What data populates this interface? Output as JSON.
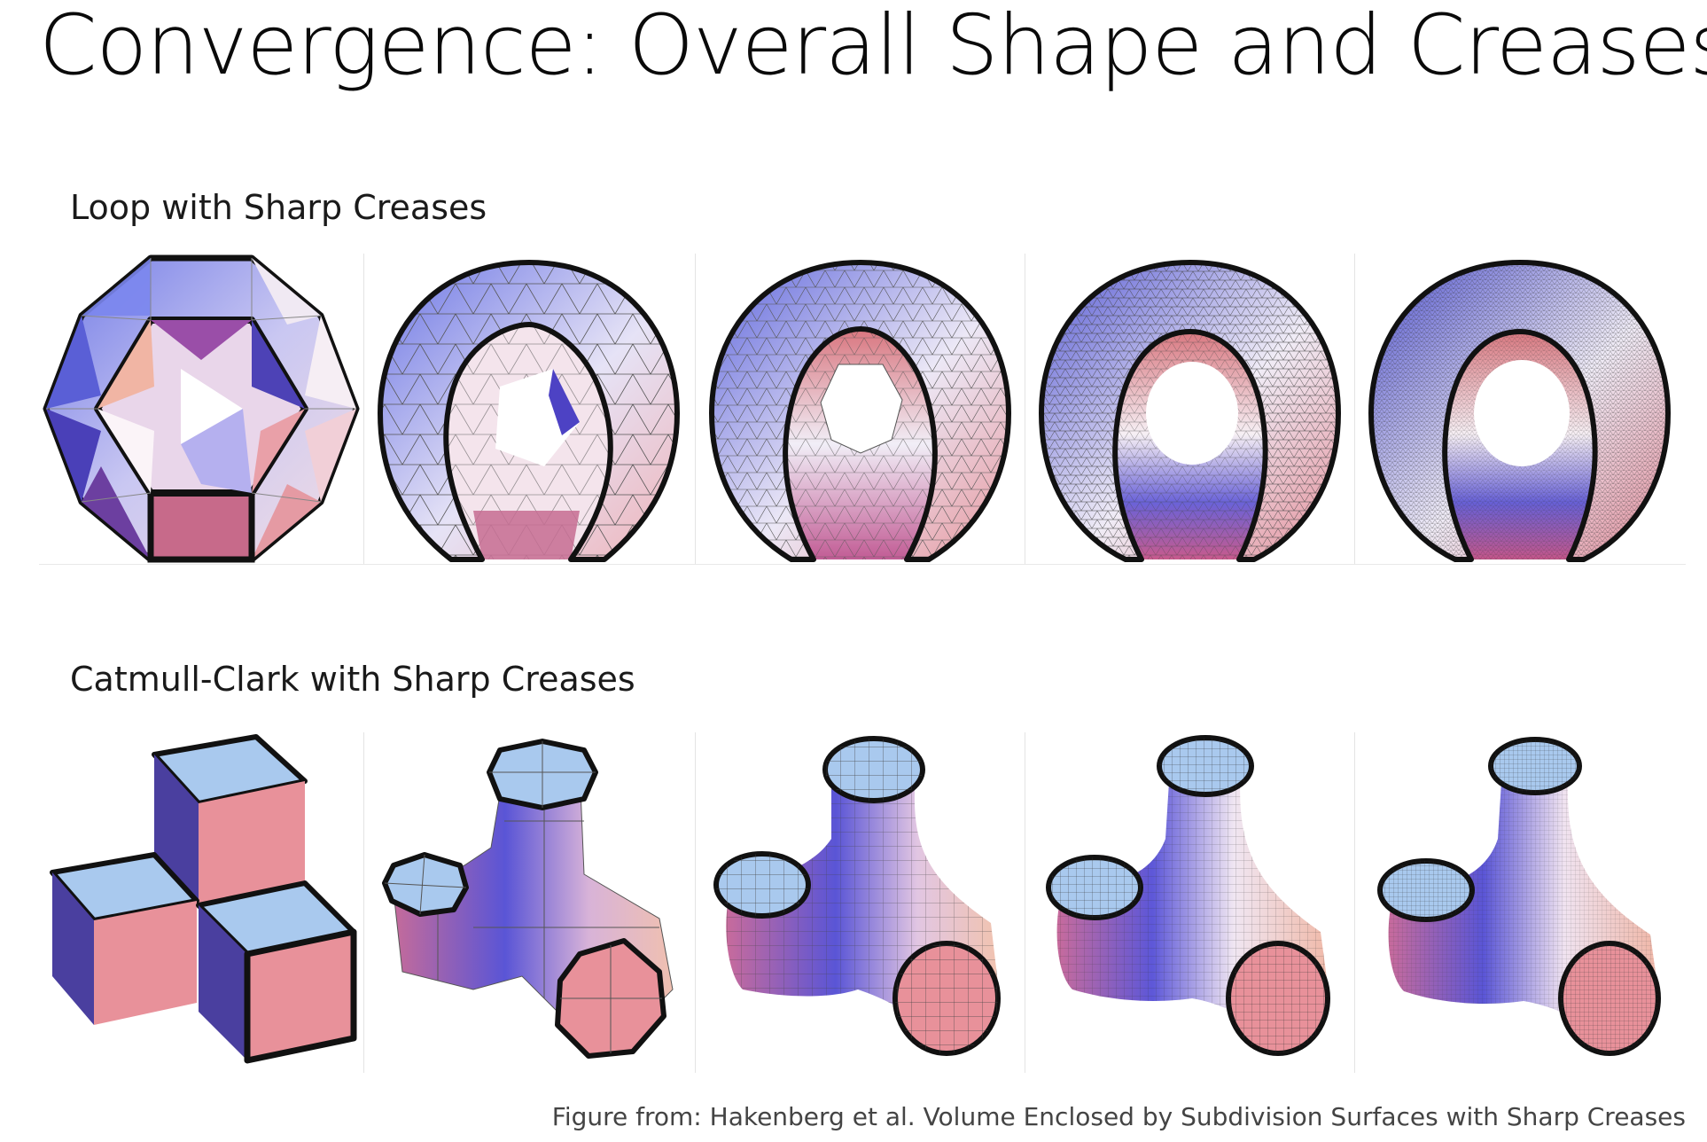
{
  "slide": {
    "title": "Convergence: Overall Shape and Creases"
  },
  "rows": [
    {
      "label": "Loop with Sharp Creases",
      "steps": [
        {
          "step": 0,
          "mesh": "coarse triangle mesh"
        },
        {
          "step": 1,
          "mesh": "subdivided once"
        },
        {
          "step": 2,
          "mesh": "subdivided twice"
        },
        {
          "step": 3,
          "mesh": "subdivided three times"
        },
        {
          "step": 4,
          "mesh": "subdivided four times"
        }
      ]
    },
    {
      "label": "Catmull-Clark with Sharp Creases",
      "steps": [
        {
          "step": 0,
          "mesh": "three cubes"
        },
        {
          "step": 1,
          "mesh": "subdivided once"
        },
        {
          "step": 2,
          "mesh": "subdivided twice"
        },
        {
          "step": 3,
          "mesh": "subdivided three times"
        },
        {
          "step": 4,
          "mesh": "subdivided four times"
        }
      ]
    }
  ],
  "caption": "Figure from:  Hakenberg et al. Volume Enclosed by Subdivision Surfaces with Sharp Creases",
  "colors": {
    "blue": "#5a5fd6",
    "light_blue": "#a9c9ee",
    "pink": "#e8919a",
    "white": "#f6f1f4",
    "purple": "#6c3fa0",
    "edge": "#111111"
  }
}
